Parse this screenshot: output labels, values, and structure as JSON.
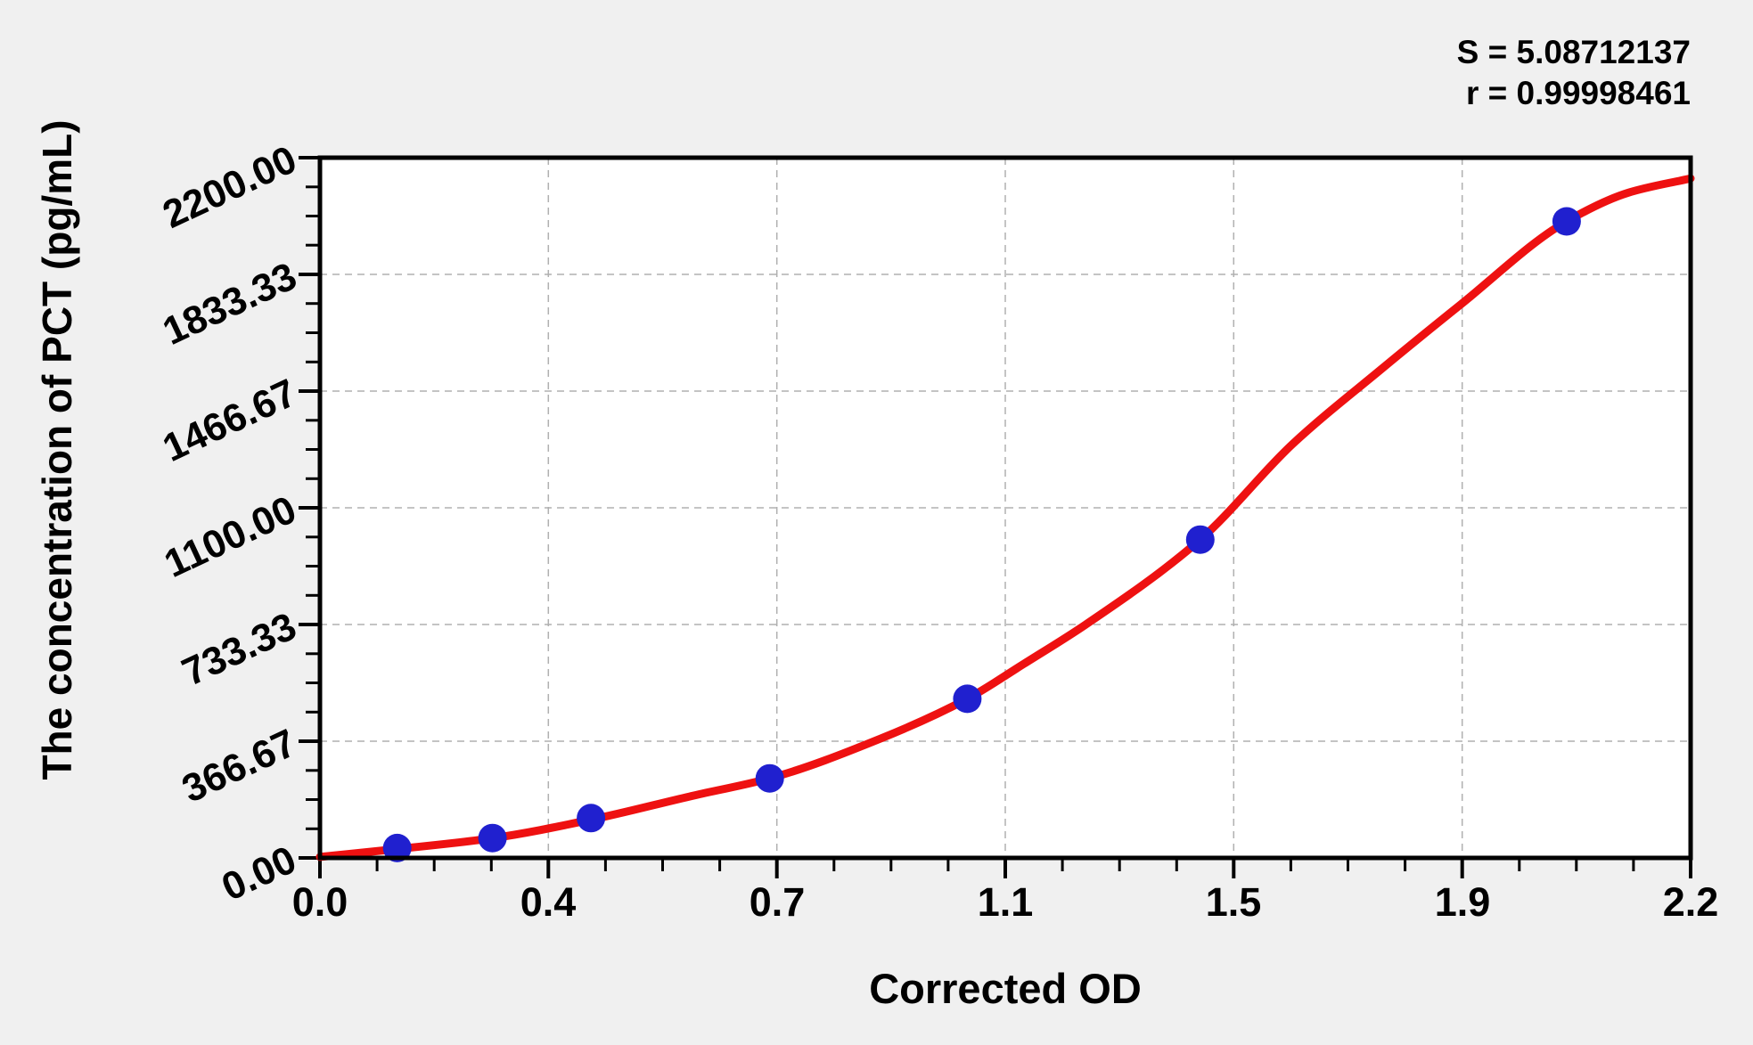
{
  "chart_data": {
    "type": "scatter",
    "title": "",
    "xlabel": "Corrected OD",
    "ylabel": "The concentration of PCT (pg/mL)",
    "annotations": {
      "s_line": "S = 5.08712137",
      "r_line": "r = 0.99998461"
    },
    "xlim": [
      0,
      2.2
    ],
    "ylim": [
      0,
      2200
    ],
    "x_tick_labels": [
      "0.0",
      "0.4",
      "0.7",
      "1.1",
      "1.5",
      "1.9",
      "2.2"
    ],
    "y_tick_labels": [
      "0.00",
      "366.67",
      "733.33",
      "1100.00",
      "1466.67",
      "1833.33",
      "2200.00"
    ],
    "minor_ticks_per_major_interval": 3,
    "grid": "dashed-major-interior",
    "legend": "none",
    "series": [
      {
        "name": "standard-points",
        "type": "scatter",
        "marker": "circle",
        "color": "#2020cf",
        "x": [
          0.124,
          0.277,
          0.435,
          0.722,
          1.039,
          1.413,
          2.001
        ],
        "y": [
          31.2,
          62.5,
          125,
          250,
          500,
          1000,
          2000
        ]
      },
      {
        "name": "fitted-curve",
        "type": "line",
        "color": "#ee1111",
        "points": [
          [
            0.0,
            3
          ],
          [
            0.124,
            28
          ],
          [
            0.277,
            62
          ],
          [
            0.435,
            120
          ],
          [
            0.6,
            196
          ],
          [
            0.722,
            250
          ],
          [
            0.9,
            375
          ],
          [
            1.039,
            500
          ],
          [
            1.13,
            610
          ],
          [
            1.229,
            733
          ],
          [
            1.413,
            1000
          ],
          [
            1.561,
            1300
          ],
          [
            1.7,
            1530
          ],
          [
            1.83,
            1737
          ],
          [
            2.001,
            2000
          ],
          [
            2.1,
            2090
          ],
          [
            2.2,
            2135
          ]
        ]
      }
    ],
    "colors": {
      "curve": "#ee1111",
      "points": "#2020cf",
      "grid": "#b0b0b0",
      "axis": "#000000",
      "plot_bg": "#ffffff",
      "page_bg": "#f0f0f0",
      "text": "#000000"
    }
  }
}
